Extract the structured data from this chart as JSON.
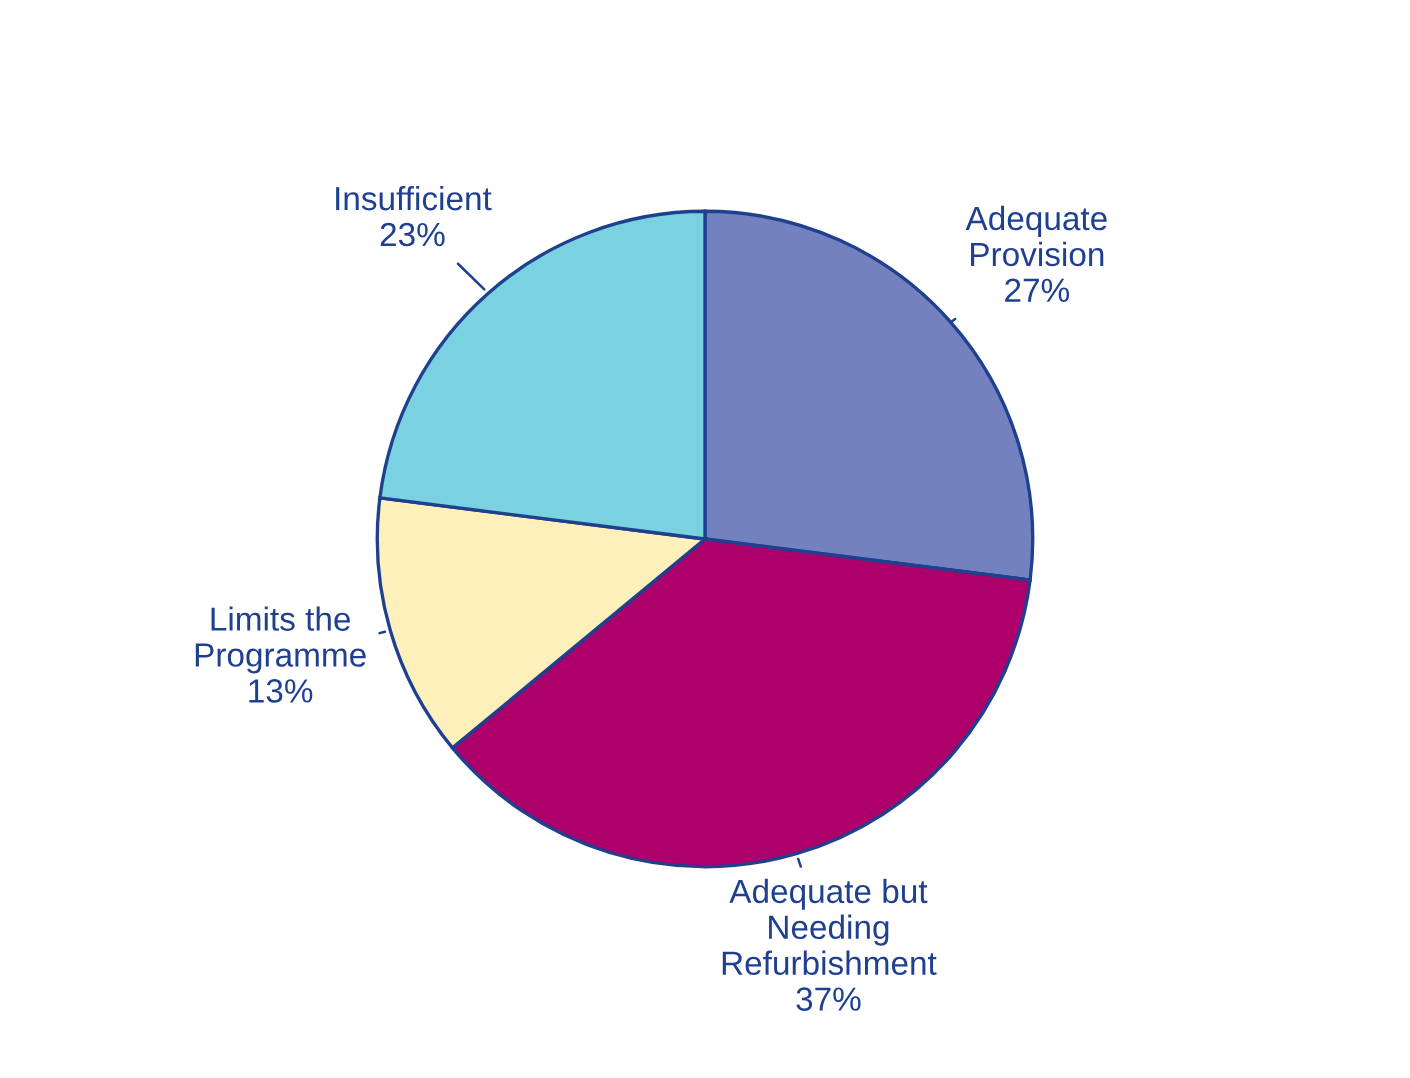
{
  "chart_data": {
    "type": "pie",
    "categories": [
      "Adequate\nProvision",
      "Adequate but\nNeeding\nRefurbishment",
      "Limits the\nProgramme",
      "Insufficient"
    ],
    "values": [
      27,
      37,
      13,
      23
    ],
    "value_labels": [
      "27%",
      "37%",
      "13%",
      "23%"
    ],
    "colors": [
      "#7381bf",
      "#ad006a",
      "#fdf0bb",
      "#7ad1e0"
    ]
  }
}
